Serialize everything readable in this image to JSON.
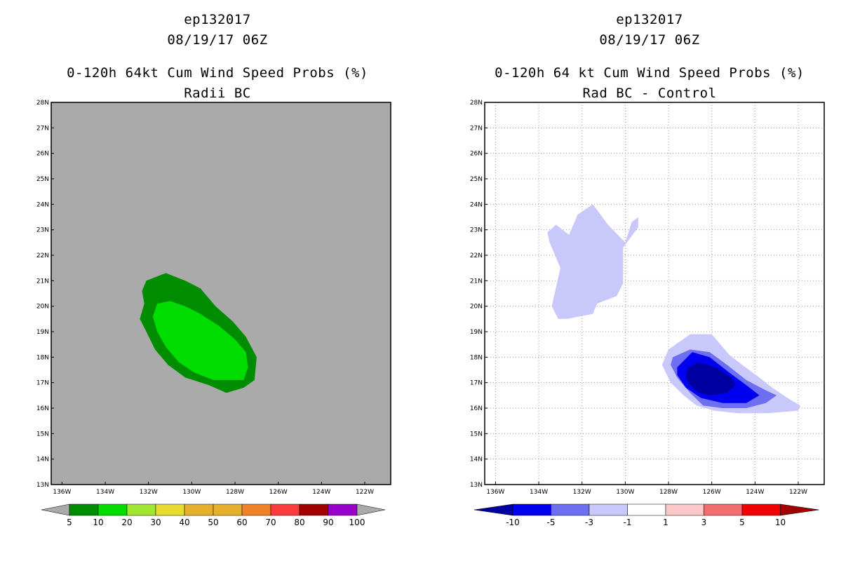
{
  "left_panel": {
    "title_line1": "ep132017",
    "title_line2": "08/19/17 06Z",
    "subtitle_line1": "0-120h 64kt Cum Wind Speed Probs (%)",
    "subtitle_line2": "Radii BC",
    "background_color": "#aaaaaa",
    "colorbar_labels": [
      "5",
      "10",
      "20",
      "30",
      "40",
      "50",
      "60",
      "70",
      "80",
      "90",
      "100"
    ],
    "colorbar_colors": [
      "#008c00",
      "#00dc00",
      "#a0e632",
      "#e6dc32",
      "#e6af2d",
      "#e6af2d",
      "#f08228",
      "#fa3c3c",
      "#a00000",
      "#9600c8"
    ]
  },
  "right_panel": {
    "title_line1": "ep132017",
    "title_line2": "08/19/17 06Z",
    "subtitle_line1": "0-120h 64 kt Cum Wind Speed Probs (%)",
    "subtitle_line2": "Rad BC - Control",
    "colorbar_labels": [
      "-10",
      "-5",
      "-3",
      "-1",
      "1",
      "3",
      "5",
      "10"
    ],
    "colorbar_colors": [
      "#0000a0",
      "#0000f0",
      "#6e6ef0",
      "#c8c8fa",
      "#ffffff",
      "#fac8c8",
      "#f06e6e",
      "#f00000",
      "#a00000"
    ]
  },
  "y_ticks": [
    "28N",
    "27N",
    "26N",
    "25N",
    "24N",
    "23N",
    "22N",
    "21N",
    "20N",
    "19N",
    "18N",
    "17N",
    "16N",
    "15N",
    "14N",
    "13N"
  ],
  "x_ticks": [
    "136W",
    "134W",
    "132W",
    "130W",
    "128W",
    "126W",
    "124W",
    "122W"
  ],
  "map_extent": {
    "lon_min": -136.5,
    "lon_max": -120.8,
    "lat_min": 13,
    "lat_max": 28
  },
  "probability_contours_left": [
    {
      "level": "5-10%",
      "color": "#008c00",
      "lonlat": [
        [
          -132.1,
          21.0
        ],
        [
          -131.2,
          21.3
        ],
        [
          -130.3,
          21.0
        ],
        [
          -129.6,
          20.7
        ],
        [
          -128.9,
          20.0
        ],
        [
          -128.1,
          19.4
        ],
        [
          -127.5,
          18.8
        ],
        [
          -127.0,
          18.0
        ],
        [
          -127.1,
          17.1
        ],
        [
          -127.6,
          16.8
        ],
        [
          -128.4,
          16.6
        ],
        [
          -129.2,
          16.9
        ],
        [
          -130.3,
          17.2
        ],
        [
          -131.1,
          17.7
        ],
        [
          -131.7,
          18.3
        ],
        [
          -132.1,
          19.0
        ],
        [
          -132.4,
          19.5
        ],
        [
          -132.2,
          20.1
        ],
        [
          -132.3,
          20.6
        ]
      ]
    },
    {
      "level": "10-20%",
      "color": "#00dc00",
      "lonlat": [
        [
          -131.6,
          20.1
        ],
        [
          -131.0,
          20.2
        ],
        [
          -130.3,
          20.0
        ],
        [
          -129.6,
          19.7
        ],
        [
          -128.7,
          19.2
        ],
        [
          -128.0,
          18.7
        ],
        [
          -127.5,
          18.2
        ],
        [
          -127.4,
          17.6
        ],
        [
          -127.6,
          17.1
        ],
        [
          -128.2,
          17.1
        ],
        [
          -129.0,
          17.1
        ],
        [
          -129.9,
          17.4
        ],
        [
          -130.6,
          17.8
        ],
        [
          -131.2,
          18.4
        ],
        [
          -131.6,
          19.0
        ],
        [
          -131.8,
          19.6
        ]
      ]
    }
  ],
  "difference_contours_right": [
    {
      "level": "-3 to -1",
      "color": "#c8c8fa",
      "lonlat": [
        [
          -133.4,
          20.0
        ],
        [
          -133.0,
          21.5
        ],
        [
          -133.5,
          22.5
        ],
        [
          -133.6,
          22.9
        ],
        [
          -133.2,
          23.2
        ],
        [
          -132.6,
          22.8
        ],
        [
          -132.2,
          23.6
        ],
        [
          -131.5,
          24.0
        ],
        [
          -130.8,
          23.2
        ],
        [
          -130.0,
          22.5
        ],
        [
          -129.7,
          23.3
        ],
        [
          -129.4,
          23.5
        ],
        [
          -129.4,
          23.1
        ],
        [
          -130.1,
          22.3
        ],
        [
          -130.1,
          20.9
        ],
        [
          -130.4,
          20.4
        ],
        [
          -131.3,
          20.1
        ],
        [
          -131.5,
          19.7
        ],
        [
          -132.7,
          19.5
        ],
        [
          -133.1,
          19.5
        ]
      ]
    },
    {
      "level": "-3 to -1",
      "color": "#c8c8fa",
      "lonlat": [
        [
          -128.0,
          18.3
        ],
        [
          -127.0,
          18.9
        ],
        [
          -126.0,
          18.9
        ],
        [
          -125.2,
          18.1
        ],
        [
          -124.6,
          17.7
        ],
        [
          -123.8,
          17.2
        ],
        [
          -123.2,
          16.8
        ],
        [
          -122.5,
          16.4
        ],
        [
          -121.9,
          16.1
        ],
        [
          -122.0,
          15.9
        ],
        [
          -123.4,
          15.8
        ],
        [
          -124.8,
          15.8
        ],
        [
          -125.9,
          15.9
        ],
        [
          -126.7,
          16.1
        ],
        [
          -127.3,
          16.5
        ],
        [
          -127.9,
          17.0
        ],
        [
          -128.3,
          17.7
        ]
      ]
    },
    {
      "level": "-5 to -3",
      "color": "#6e6ef0",
      "lonlat": [
        [
          -127.8,
          18.0
        ],
        [
          -127.0,
          18.3
        ],
        [
          -126.1,
          18.2
        ],
        [
          -125.3,
          17.7
        ],
        [
          -124.4,
          17.1
        ],
        [
          -123.5,
          16.7
        ],
        [
          -123.0,
          16.5
        ],
        [
          -123.5,
          16.2
        ],
        [
          -124.4,
          16.0
        ],
        [
          -125.5,
          16.0
        ],
        [
          -126.4,
          16.1
        ],
        [
          -127.0,
          16.6
        ],
        [
          -127.6,
          17.2
        ],
        [
          -127.9,
          17.7
        ]
      ]
    },
    {
      "level": "-10 to -5",
      "color": "#0000f0",
      "lonlat": [
        [
          -127.6,
          17.6
        ],
        [
          -126.9,
          18.2
        ],
        [
          -126.1,
          18.0
        ],
        [
          -125.2,
          17.4
        ],
        [
          -124.4,
          16.9
        ],
        [
          -123.8,
          16.5
        ],
        [
          -124.4,
          16.2
        ],
        [
          -125.5,
          16.2
        ],
        [
          -126.5,
          16.4
        ],
        [
          -127.2,
          16.8
        ],
        [
          -127.6,
          17.3
        ]
      ]
    },
    {
      "level": "< -10",
      "color": "#0000a0",
      "lonlat": [
        [
          -127.1,
          17.6
        ],
        [
          -126.6,
          17.8
        ],
        [
          -125.8,
          17.6
        ],
        [
          -125.1,
          17.2
        ],
        [
          -124.9,
          16.9
        ],
        [
          -125.3,
          16.6
        ],
        [
          -126.0,
          16.5
        ],
        [
          -126.6,
          16.6
        ],
        [
          -127.0,
          16.9
        ],
        [
          -127.2,
          17.2
        ]
      ]
    }
  ]
}
